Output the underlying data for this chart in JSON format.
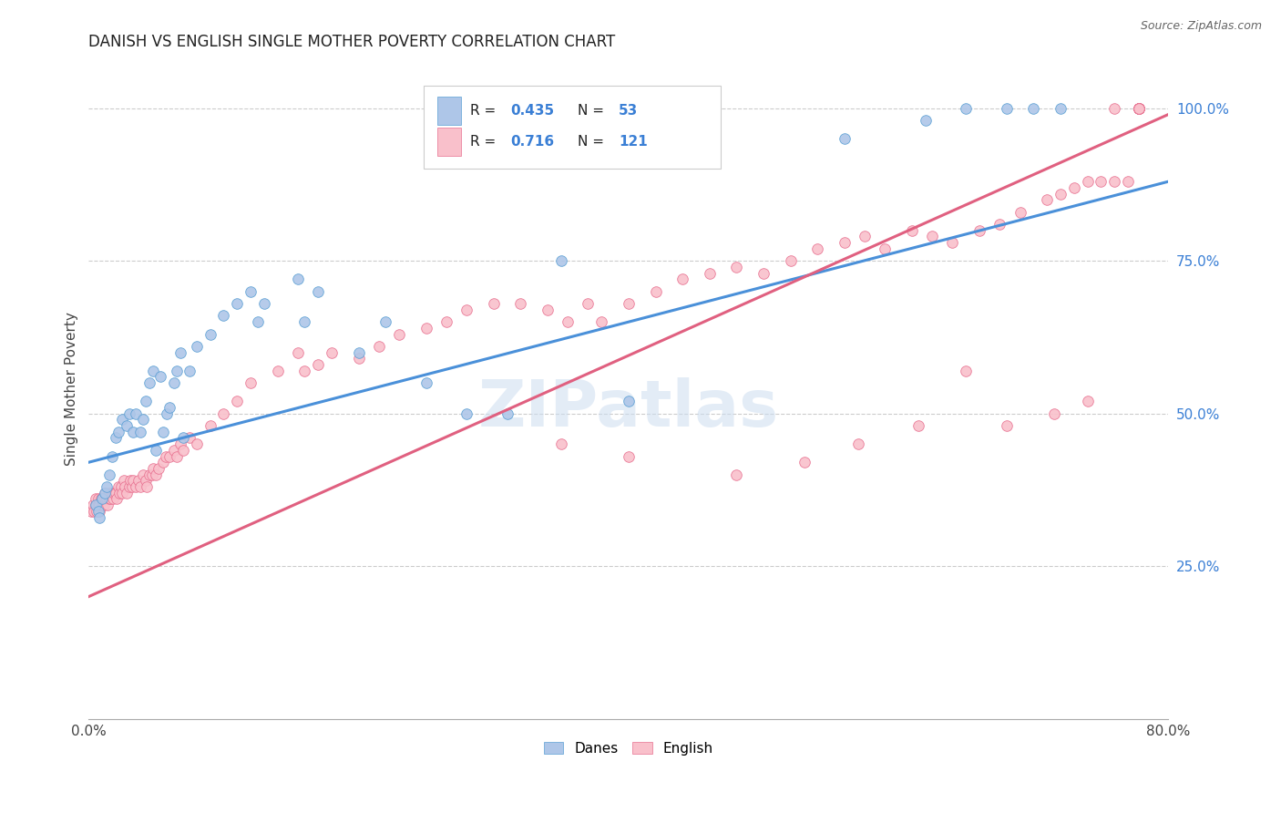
{
  "title": "DANISH VS ENGLISH SINGLE MOTHER POVERTY CORRELATION CHART",
  "source": "Source: ZipAtlas.com",
  "ylabel": "Single Mother Poverty",
  "right_yticks": [
    "100.0%",
    "75.0%",
    "50.0%",
    "25.0%"
  ],
  "right_ytick_vals": [
    1.0,
    0.75,
    0.5,
    0.25
  ],
  "watermark": "ZIPatlas",
  "legend_blue_label": "Danes",
  "legend_pink_label": "English",
  "blue_R": 0.435,
  "blue_N": 53,
  "pink_R": 0.716,
  "pink_N": 121,
  "blue_scatter_color": "#aec6e8",
  "pink_scatter_color": "#f9c0cb",
  "blue_edge_color": "#5a9fd4",
  "pink_edge_color": "#e87090",
  "blue_line_color": "#4a90d9",
  "pink_line_color": "#e06080",
  "xmin": 0.0,
  "xmax": 0.8,
  "ymin": 0.0,
  "ymax": 1.08,
  "blue_trend_x0": 0.0,
  "blue_trend_y0": 0.42,
  "blue_trend_x1": 0.8,
  "blue_trend_y1": 0.88,
  "pink_trend_x0": 0.0,
  "pink_trend_y0": 0.2,
  "pink_trend_x1": 0.8,
  "pink_trend_y1": 0.99
}
